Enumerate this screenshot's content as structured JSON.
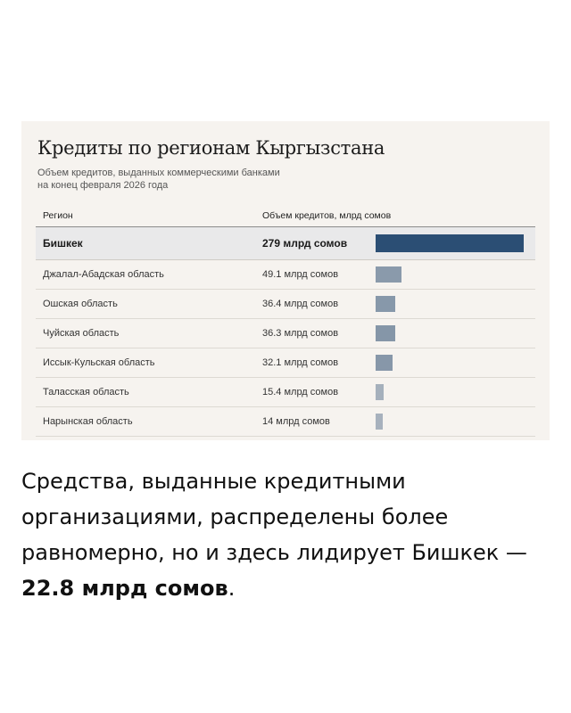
{
  "colors": {
    "highlight_bar": "#2b4e74",
    "bar_palette": [
      "#2b4e74",
      "#8a9aab",
      "#8798aa",
      "#8596a8",
      "#8797a9",
      "#a5b0bc",
      "#a7b1bd"
    ]
  },
  "chart_data": {
    "type": "bar",
    "orientation": "horizontal",
    "title": "Кредиты по регионам Кыргызстана",
    "subtitle": [
      "Объем кредитов, выданных коммерческими банками",
      "на конец февраля 2026 года"
    ],
    "columns": {
      "region": "Регион",
      "volume": "Объем кредитов, млрд сомов"
    },
    "unit": "млрд сомов",
    "categories": [
      "Бишкек",
      "Джалал-Абадская область",
      "Ошская область",
      "Чуйская область",
      "Иссык-Кульская область",
      "Таласская область",
      "Нарынская область"
    ],
    "values": [
      279,
      49.1,
      36.4,
      36.3,
      32.1,
      15.4,
      14
    ],
    "value_labels": [
      "279 млрд сомов",
      "49.1 млрд сомов",
      "36.4 млрд сомов",
      "36.3 млрд сомов",
      "32.1 млрд сомов",
      "15.4 млрд сомов",
      "14 млрд сомов"
    ],
    "xlim": [
      0,
      279
    ],
    "highlight_index": 0
  },
  "caption": {
    "text": "Средства, выданные кредитными организациями, распределены более равномерно, но и здесь лидирует Бишкек — ",
    "bold": "22.8 млрд сомов",
    "end": "."
  }
}
